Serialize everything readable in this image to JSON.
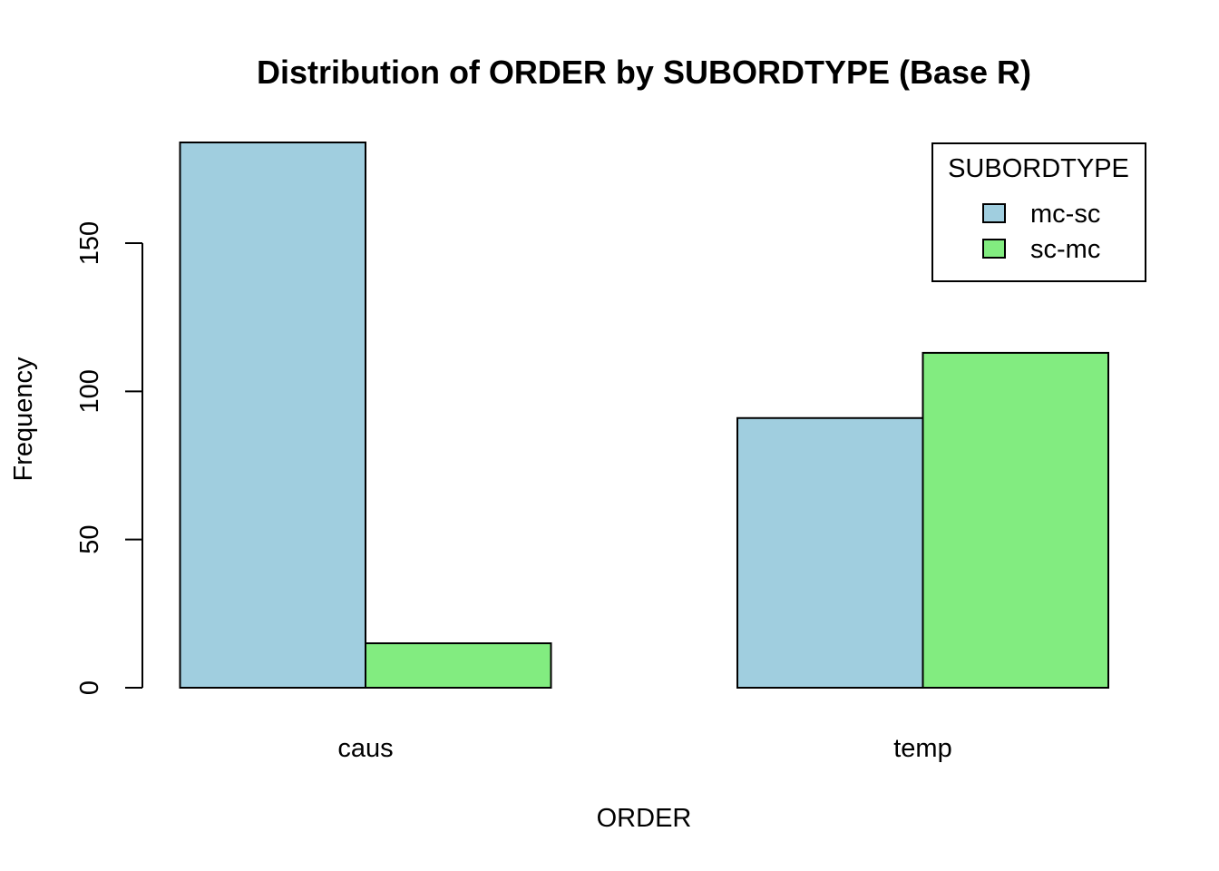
{
  "chart_data": {
    "type": "bar",
    "title": "Distribution of ORDER by SUBORDTYPE (Base R)",
    "xlabel": "ORDER",
    "ylabel": "Frequency",
    "categories": [
      "caus",
      "temp"
    ],
    "series": [
      {
        "name": "mc-sc",
        "values": [
          184,
          91
        ],
        "color": "#A0CEDF"
      },
      {
        "name": "sc-mc",
        "values": [
          15,
          113
        ],
        "color": "#82EC80"
      }
    ],
    "ylim": [
      0,
      184
    ],
    "yticks": [
      0,
      50,
      100,
      150
    ],
    "legend": {
      "title": "SUBORDTYPE",
      "position": "top-right"
    },
    "grid": false
  }
}
